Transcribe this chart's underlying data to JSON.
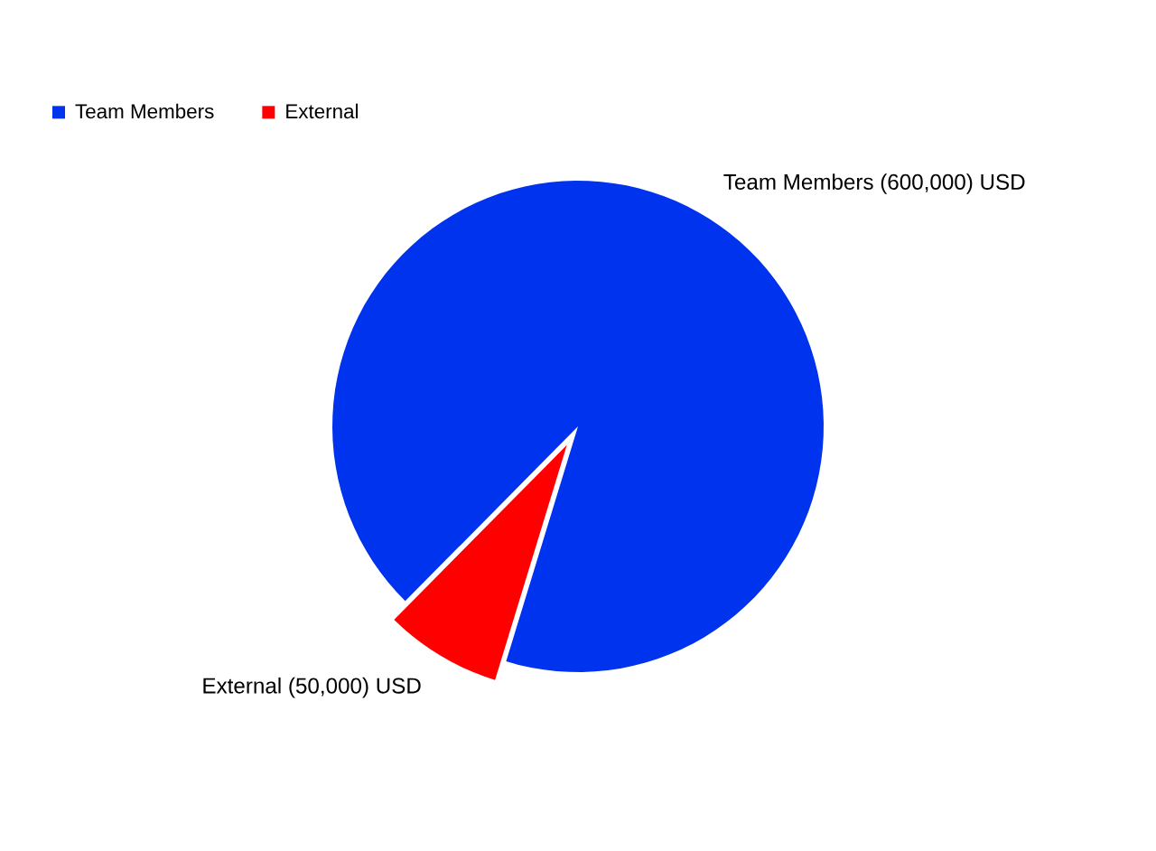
{
  "chart_data": {
    "type": "pie",
    "categories": [
      "Team Members",
      "External"
    ],
    "values": [
      600000,
      50000
    ],
    "colors": [
      "#0033ee",
      "#ff0000"
    ],
    "value_labels": [
      "Team Members (600,000) USD",
      "External (50,000) USD"
    ],
    "legend": "top left"
  }
}
